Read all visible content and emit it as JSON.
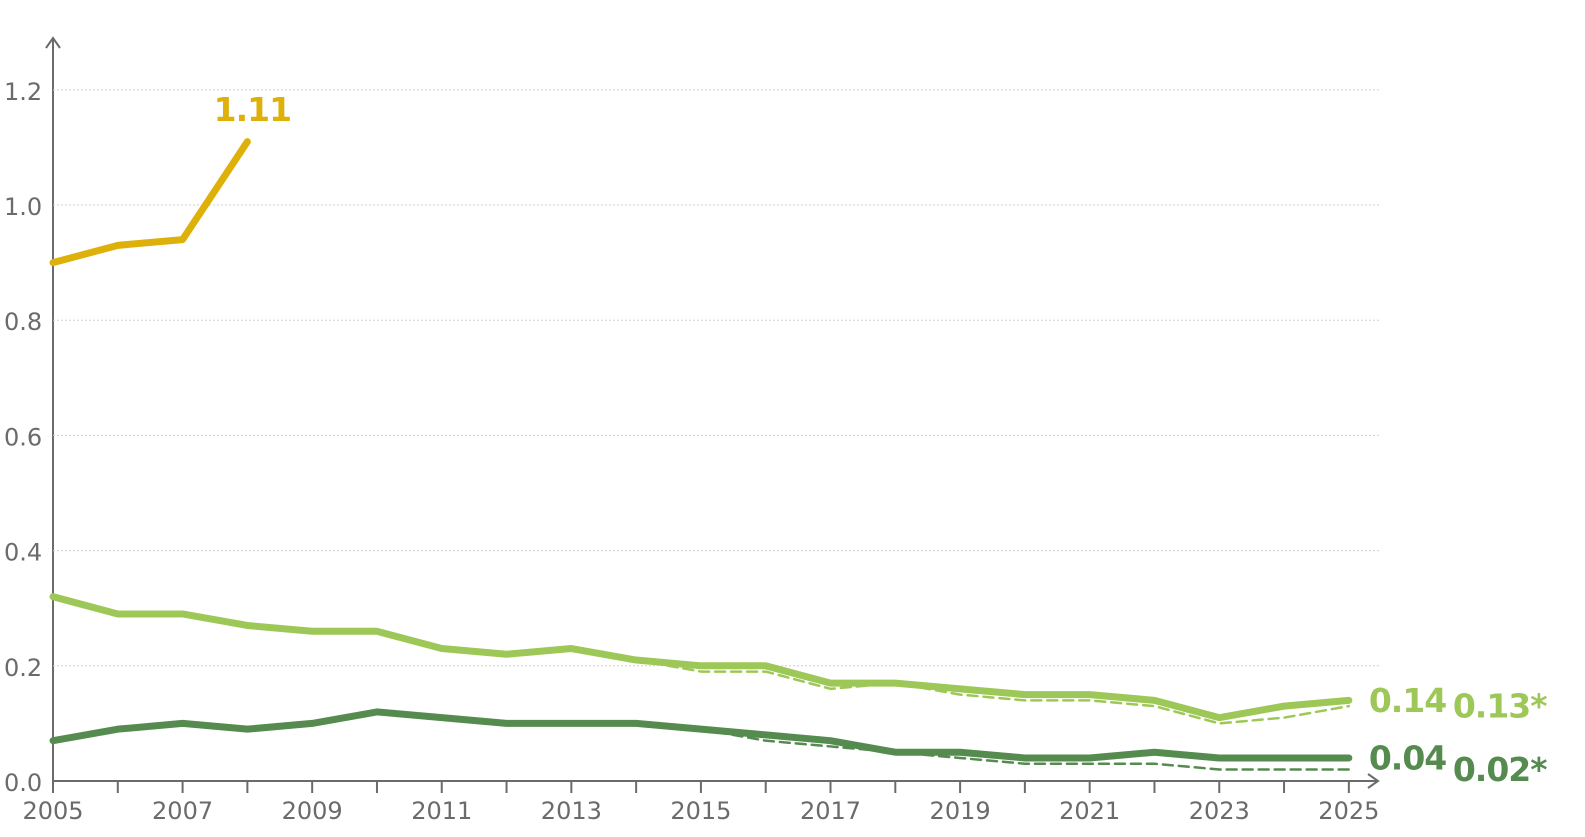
{
  "chart_data": {
    "type": "line",
    "x": [
      2005,
      2006,
      2007,
      2008,
      2009,
      2010,
      2011,
      2012,
      2013,
      2014,
      2015,
      2016,
      2017,
      2018,
      2019,
      2020,
      2021,
      2022,
      2023,
      2024,
      2025
    ],
    "xlim": [
      2005,
      2025.45
    ],
    "xticks": [
      2005,
      2007,
      2009,
      2011,
      2013,
      2015,
      2017,
      2019,
      2021,
      2023,
      2025
    ],
    "ylim": [
      0,
      1.29
    ],
    "yticks": [
      {
        "value": 0,
        "label": "0.0"
      },
      0.2,
      0.4,
      0.6,
      0.8,
      {
        "value": 1,
        "label": "1.0"
      },
      1.2
    ],
    "grid": true,
    "series": [
      {
        "color": "#ddb10a",
        "dashed": false,
        "values": [
          0.9,
          0.93,
          0.94,
          1.11,
          null,
          null,
          null,
          null,
          null,
          null,
          null,
          null,
          null,
          null,
          null,
          null,
          null,
          null,
          null,
          null,
          null
        ],
        "value_labels": [
          null,
          null,
          null,
          "1.11",
          null,
          null,
          null,
          null,
          null,
          null,
          null,
          null,
          null,
          null,
          null,
          null,
          null,
          null,
          null,
          null,
          null
        ]
      },
      {
        "color": "#9dc857",
        "dashed": false,
        "values": [
          0.32,
          0.29,
          0.29,
          0.27,
          0.26,
          0.26,
          0.23,
          0.22,
          0.23,
          0.21,
          0.2,
          0.2,
          0.17,
          0.17,
          0.16,
          0.15,
          0.15,
          0.14,
          0.11,
          0.13,
          0.14
        ],
        "value_labels": [
          null,
          null,
          null,
          null,
          null,
          null,
          null,
          null,
          null,
          null,
          null,
          null,
          null,
          null,
          null,
          null,
          null,
          null,
          null,
          null,
          "0.14"
        ]
      },
      {
        "color": "#9dc857",
        "dashed": true,
        "values": [
          null,
          null,
          null,
          null,
          null,
          null,
          null,
          null,
          null,
          0.21,
          0.19,
          0.19,
          0.16,
          0.17,
          0.15,
          0.14,
          0.14,
          0.13,
          0.1,
          0.11,
          0.13
        ],
        "value_labels": [
          null,
          null,
          null,
          null,
          null,
          null,
          null,
          null,
          null,
          null,
          null,
          null,
          null,
          null,
          null,
          null,
          null,
          null,
          null,
          null,
          "0.13*"
        ]
      },
      {
        "color": "#558b4f",
        "dashed": false,
        "values": [
          0.07,
          0.09,
          0.1,
          0.09,
          0.1,
          0.12,
          0.11,
          0.1,
          0.1,
          0.1,
          0.09,
          0.08,
          0.07,
          0.05,
          0.05,
          0.04,
          0.04,
          0.05,
          0.04,
          0.04,
          0.04
        ],
        "value_labels": [
          null,
          null,
          null,
          null,
          null,
          null,
          null,
          null,
          null,
          null,
          null,
          null,
          null,
          null,
          null,
          null,
          null,
          null,
          null,
          null,
          "0.04"
        ]
      },
      {
        "color": "#558b4f",
        "dashed": true,
        "values": [
          null,
          null,
          null,
          null,
          null,
          null,
          null,
          null,
          null,
          null,
          0.09,
          0.07,
          0.06,
          0.05,
          0.04,
          0.03,
          0.03,
          0.03,
          0.02,
          0.02,
          0.02
        ],
        "value_labels": [
          null,
          null,
          null,
          null,
          null,
          null,
          null,
          null,
          null,
          null,
          null,
          null,
          null,
          null,
          null,
          null,
          null,
          null,
          null,
          null,
          "0.02*"
        ]
      }
    ]
  }
}
